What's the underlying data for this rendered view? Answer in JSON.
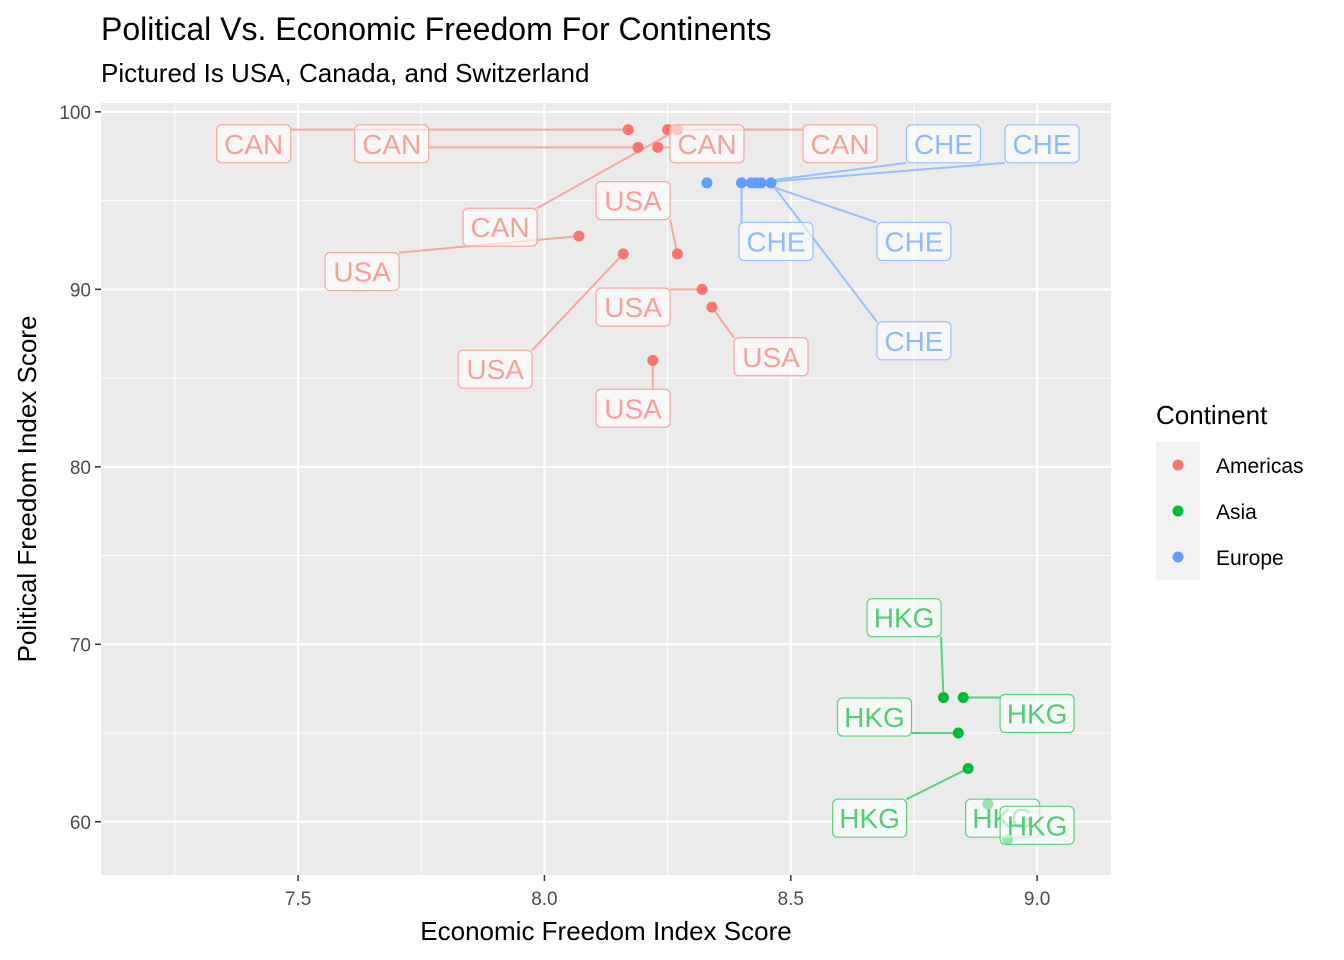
{
  "chart_data": {
    "type": "scatter",
    "title": "Political Vs. Economic Freedom For Continents",
    "subtitle": "Pictured Is USA, Canada, and Switzerland",
    "xlabel": "Economic Freedom Index Score",
    "ylabel": "Political Freedom Index Score",
    "xlim": [
      7.1,
      9.15
    ],
    "ylim": [
      57,
      100.5
    ],
    "x_ticks": [
      7.5,
      8.0,
      8.5,
      9.0
    ],
    "x_tick_labels": [
      "7.5",
      "8.0",
      "8.5",
      "9.0"
    ],
    "y_ticks": [
      60,
      70,
      80,
      90,
      100
    ],
    "y_tick_labels": [
      "60",
      "70",
      "80",
      "90",
      "100"
    ],
    "grid": true,
    "legend": {
      "title": "Continent",
      "placement": "right",
      "entries": [
        {
          "label": "Americas",
          "color": "#F8766D"
        },
        {
          "label": "Asia",
          "color": "#00BA38"
        },
        {
          "label": "Europe",
          "color": "#619CFF"
        }
      ]
    },
    "series": [
      {
        "name": "Americas",
        "color": "#F8766D",
        "points": [
          {
            "x": 8.17,
            "y": 99,
            "label": "CAN",
            "lx": 7.41,
            "ly": 98.2
          },
          {
            "x": 8.19,
            "y": 98,
            "label": "CAN",
            "lx": 7.69,
            "ly": 98.2
          },
          {
            "x": 8.23,
            "y": 98,
            "label": "CAN",
            "lx": 8.33,
            "ly": 98.2
          },
          {
            "x": 8.25,
            "y": 99,
            "label": "CAN",
            "lx": 8.6,
            "ly": 98.2
          },
          {
            "x": 8.27,
            "y": 99,
            "label": "CAN",
            "lx": 7.91,
            "ly": 93.5
          },
          {
            "x": 8.07,
            "y": 93,
            "label": "USA",
            "lx": 7.63,
            "ly": 91.0
          },
          {
            "x": 8.16,
            "y": 92,
            "label": "USA",
            "lx": 7.9,
            "ly": 85.5
          },
          {
            "x": 8.27,
            "y": 92,
            "label": "USA",
            "lx": 8.18,
            "ly": 95.0
          },
          {
            "x": 8.32,
            "y": 90,
            "label": "USA",
            "lx": 8.18,
            "ly": 89.0
          },
          {
            "x": 8.34,
            "y": 89,
            "label": "USA",
            "lx": 8.46,
            "ly": 86.2
          },
          {
            "x": 8.22,
            "y": 86,
            "label": "USA",
            "lx": 8.18,
            "ly": 83.3
          }
        ]
      },
      {
        "name": "Asia",
        "color": "#00BA38",
        "points": [
          {
            "x": 8.81,
            "y": 67,
            "label": "HKG",
            "lx": 8.73,
            "ly": 71.5
          },
          {
            "x": 8.85,
            "y": 67,
            "label": "HKG",
            "lx": 9.0,
            "ly": 66.1
          },
          {
            "x": 8.84,
            "y": 65,
            "label": "HKG",
            "lx": 8.67,
            "ly": 65.9
          },
          {
            "x": 8.86,
            "y": 63,
            "label": "HKG",
            "lx": 8.66,
            "ly": 60.2
          },
          {
            "x": 8.9,
            "y": 61,
            "label": "HKG",
            "lx": 8.93,
            "ly": 60.2
          },
          {
            "x": 8.94,
            "y": 59,
            "label": "HKG",
            "lx": 9.0,
            "ly": 59.8
          }
        ]
      },
      {
        "name": "Europe",
        "color": "#619CFF",
        "points": [
          {
            "x": 8.33,
            "y": 96,
            "label": "",
            "lx": null,
            "ly": null
          },
          {
            "x": 8.4,
            "y": 96,
            "label": "CHE",
            "lx": 8.47,
            "ly": 92.7
          },
          {
            "x": 8.42,
            "y": 96,
            "label": "CHE",
            "lx": 8.81,
            "ly": 98.2
          },
          {
            "x": 8.43,
            "y": 96,
            "label": "CHE",
            "lx": 9.01,
            "ly": 98.2
          },
          {
            "x": 8.44,
            "y": 96,
            "label": "CHE",
            "lx": 8.75,
            "ly": 92.7
          },
          {
            "x": 8.46,
            "y": 96,
            "label": "CHE",
            "lx": 8.75,
            "ly": 87.1
          }
        ]
      }
    ]
  }
}
